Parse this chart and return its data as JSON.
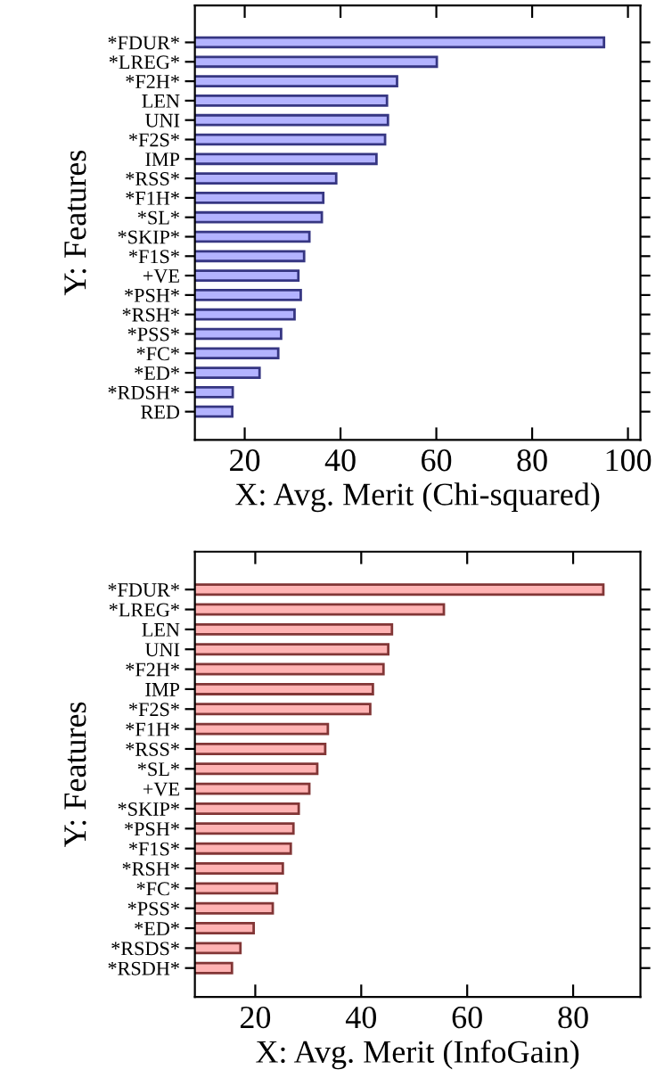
{
  "chart_data": [
    {
      "type": "bar",
      "orientation": "horizontal",
      "xlabel": "X: Avg. Merit (Chi-squared)",
      "ylabel": "Y: Features",
      "categories": [
        "*FDUR*",
        "*LREG*",
        "*F2H*",
        "LEN",
        "UNI",
        "*F2S*",
        "IMP",
        "*RSS*",
        "*F1H*",
        "*SL*",
        "*SKIP*",
        "*F1S*",
        "+VE",
        "*PSH*",
        "*RSH*",
        "*PSS*",
        "*FC*",
        "*ED*",
        "*RDSH*",
        "RED"
      ],
      "values": [
        95.0,
        60.1,
        51.8,
        49.7,
        49.9,
        49.3,
        47.5,
        39.1,
        36.4,
        36.1,
        33.5,
        32.4,
        31.2,
        31.7,
        30.4,
        27.6,
        27.0,
        23.1,
        17.5,
        17.4
      ],
      "color": "#b3b3ff",
      "xlim": [
        9.6,
        102.6
      ],
      "xticks": [
        20,
        40,
        60,
        80,
        100
      ],
      "grid": false,
      "legend": false
    },
    {
      "type": "bar",
      "orientation": "horizontal",
      "xlabel": "X: Avg. Merit (InfoGain)",
      "ylabel": "Y: Features",
      "categories": [
        "*FDUR*",
        "*LREG*",
        "LEN",
        "UNI",
        "*F2H*",
        "IMP",
        "*F2S*",
        "*F1H*",
        "*RSS*",
        "*SL*",
        "+VE",
        "*SKIP*",
        "*PSH*",
        "*F1S*",
        "*RSH*",
        "*FC*",
        "*PSS*",
        "*ED*",
        "*RSDS*",
        "*RSDH*"
      ],
      "values": [
        85.7,
        55.6,
        45.8,
        45.1,
        44.2,
        42.2,
        41.7,
        33.7,
        33.2,
        31.7,
        30.2,
        28.2,
        27.2,
        26.7,
        25.2,
        24.1,
        23.3,
        19.7,
        17.2,
        15.6
      ],
      "color": "#ffb3b3",
      "xlim": [
        8.6,
        92.7
      ],
      "xticks": [
        20,
        40,
        60,
        80
      ],
      "grid": false,
      "legend": false
    }
  ]
}
